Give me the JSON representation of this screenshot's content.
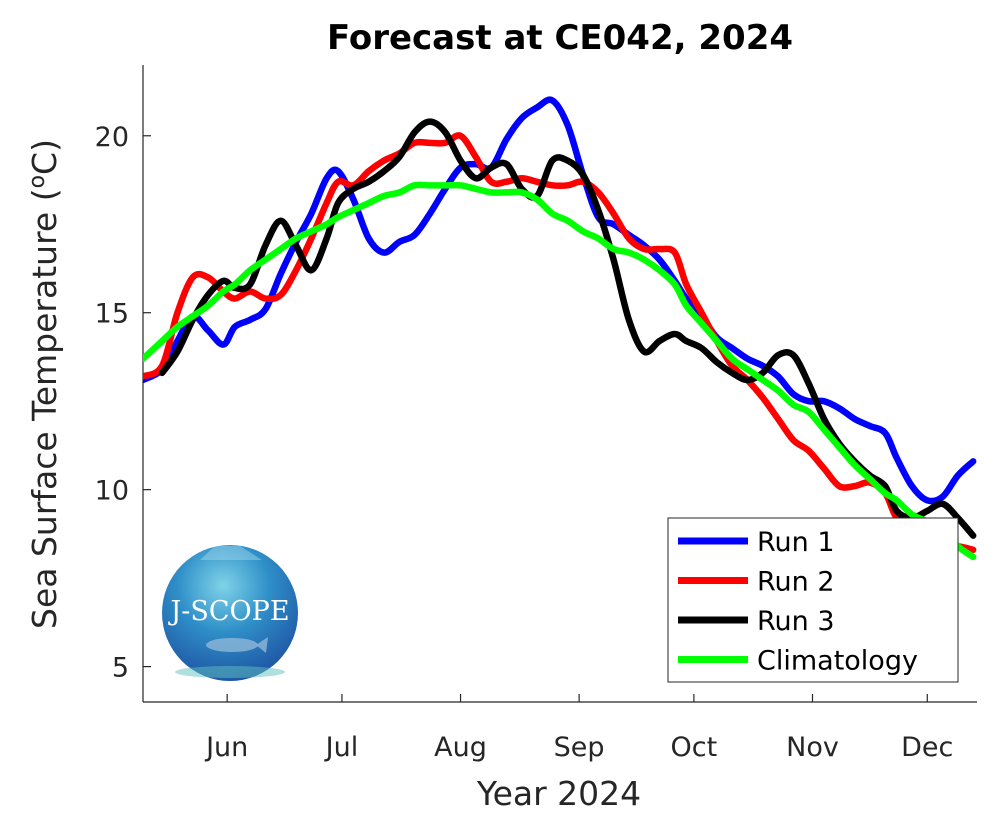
{
  "chart_data": {
    "type": "line",
    "title": "Forecast at CE042, 2024",
    "xlabel": "Year 2024",
    "ylabel_prefix": "Sea Surface Temperature (",
    "ylabel_sup": "o",
    "ylabel_suffix": "C)",
    "xlim": [
      "2024-05-10",
      "2024-12-14"
    ],
    "ylim": [
      4,
      22
    ],
    "grid": false,
    "legend_placement": "bottom-right",
    "x_ticks": [
      {
        "date": "2024-06-01",
        "label": "Jun"
      },
      {
        "date": "2024-07-01",
        "label": "Jul"
      },
      {
        "date": "2024-08-01",
        "label": "Aug"
      },
      {
        "date": "2024-09-01",
        "label": "Sep"
      },
      {
        "date": "2024-10-01",
        "label": "Oct"
      },
      {
        "date": "2024-11-01",
        "label": "Nov"
      },
      {
        "date": "2024-12-01",
        "label": "Dec"
      }
    ],
    "y_ticks": [
      5,
      10,
      15,
      20
    ],
    "dates": [
      "2024-05-10",
      "2024-05-15",
      "2024-05-19",
      "2024-05-23",
      "2024-05-27",
      "2024-05-31",
      "2024-06-03",
      "2024-06-07",
      "2024-06-11",
      "2024-06-15",
      "2024-06-19",
      "2024-06-23",
      "2024-06-27",
      "2024-06-30",
      "2024-07-04",
      "2024-07-08",
      "2024-07-12",
      "2024-07-16",
      "2024-07-20",
      "2024-07-24",
      "2024-07-28",
      "2024-08-01",
      "2024-08-05",
      "2024-08-09",
      "2024-08-13",
      "2024-08-17",
      "2024-08-21",
      "2024-08-25",
      "2024-08-29",
      "2024-09-02",
      "2024-09-06",
      "2024-09-10",
      "2024-09-14",
      "2024-09-18",
      "2024-09-22",
      "2024-09-26",
      "2024-09-29",
      "2024-10-03",
      "2024-10-07",
      "2024-10-11",
      "2024-10-15",
      "2024-10-19",
      "2024-10-23",
      "2024-10-27",
      "2024-10-31",
      "2024-11-04",
      "2024-11-08",
      "2024-11-12",
      "2024-11-16",
      "2024-11-20",
      "2024-11-23",
      "2024-11-27",
      "2024-12-01",
      "2024-12-05",
      "2024-12-09",
      "2024-12-13"
    ],
    "series": [
      {
        "name": "Run 1",
        "color": "#0000ff",
        "values": [
          13.1,
          13.4,
          14.2,
          14.9,
          14.5,
          14.1,
          14.6,
          14.8,
          15.1,
          16.1,
          17.0,
          17.8,
          18.8,
          19.0,
          18.2,
          17.1,
          16.7,
          17.0,
          17.2,
          17.8,
          18.5,
          19.1,
          19.2,
          19.1,
          19.9,
          20.5,
          20.8,
          21.0,
          20.3,
          18.9,
          17.7,
          17.5,
          17.2,
          16.9,
          16.5,
          15.9,
          15.4,
          14.9,
          14.3,
          14.0,
          13.7,
          13.5,
          13.2,
          12.7,
          12.5,
          12.5,
          12.3,
          12.0,
          11.8,
          11.6,
          10.9,
          10.1,
          9.7,
          9.8,
          10.4,
          10.8
        ]
      },
      {
        "name": "Run 2",
        "color": "#ff0000",
        "values": [
          13.2,
          13.5,
          15.0,
          16.0,
          16.0,
          15.6,
          15.4,
          15.6,
          15.4,
          15.5,
          16.2,
          17.1,
          18.1,
          18.7,
          18.6,
          19.0,
          19.3,
          19.5,
          19.8,
          19.8,
          19.8,
          20.0,
          19.4,
          18.7,
          18.7,
          18.8,
          18.7,
          18.6,
          18.6,
          18.7,
          18.4,
          17.8,
          17.1,
          16.8,
          16.8,
          16.7,
          15.8,
          15.0,
          14.2,
          13.5,
          13.1,
          12.6,
          12.0,
          11.4,
          11.1,
          10.6,
          10.1,
          10.1,
          10.2,
          9.9,
          9.2,
          8.9,
          8.6,
          8.4,
          8.4,
          8.3
        ]
      },
      {
        "name": "Run 3",
        "color": "#000000",
        "values": [
          null,
          13.3,
          13.9,
          14.8,
          15.5,
          15.9,
          15.7,
          15.8,
          16.9,
          17.6,
          16.9,
          16.2,
          17.1,
          18.1,
          18.5,
          18.7,
          19.0,
          19.4,
          20.1,
          20.4,
          20.1,
          19.3,
          18.8,
          19.1,
          19.2,
          18.5,
          18.3,
          19.3,
          19.3,
          18.9,
          17.9,
          16.5,
          14.8,
          13.9,
          14.2,
          14.4,
          14.2,
          14.0,
          13.6,
          13.3,
          13.1,
          13.3,
          13.8,
          13.8,
          13.0,
          12.0,
          11.3,
          10.8,
          10.4,
          10.1,
          9.4,
          9.2,
          9.4,
          9.6,
          9.2,
          8.7
        ]
      },
      {
        "name": "Climatology",
        "color": "#00ff00",
        "values": [
          13.7,
          14.2,
          14.6,
          14.9,
          15.2,
          15.6,
          15.8,
          16.2,
          16.5,
          16.8,
          17.1,
          17.3,
          17.5,
          17.7,
          17.9,
          18.1,
          18.3,
          18.4,
          18.6,
          18.6,
          18.6,
          18.6,
          18.5,
          18.4,
          18.4,
          18.4,
          18.2,
          17.8,
          17.6,
          17.3,
          17.1,
          16.8,
          16.7,
          16.5,
          16.2,
          15.8,
          15.2,
          14.7,
          14.2,
          13.7,
          13.4,
          13.1,
          12.8,
          12.4,
          12.2,
          11.7,
          11.2,
          10.7,
          10.3,
          9.9,
          9.7,
          9.3,
          9.1,
          8.9,
          8.4,
          8.1
        ]
      }
    ]
  },
  "logo": {
    "text": "J-SCOPE"
  }
}
